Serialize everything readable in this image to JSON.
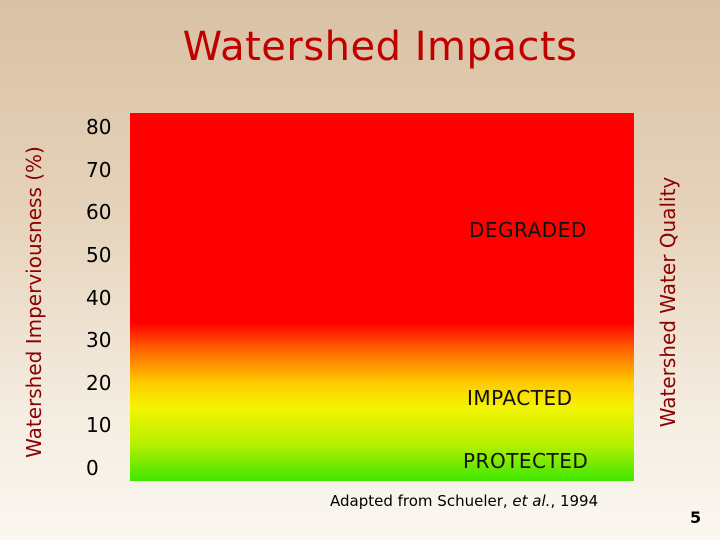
{
  "slide": {
    "title": "Watershed Impacts",
    "credit_prefix": "Adapted from Schueler, ",
    "credit_italic": "et al.",
    "credit_suffix": ", 1994",
    "page_number": "5"
  },
  "chart_data": {
    "type": "area",
    "title": "Watershed Impacts",
    "ylabel": "Watershed Imperviousness (%)",
    "ylabel_right": "Watershed Water Quality",
    "ylim": [
      0,
      80
    ],
    "yticks": [
      "80",
      "70",
      "60",
      "50",
      "40",
      "30",
      "20",
      "10",
      "0"
    ],
    "zones": [
      {
        "label": "DEGRADED",
        "color": "#ff0000"
      },
      {
        "label": "IMPACTED",
        "color": "#ffc800"
      },
      {
        "label": "PROTECTED",
        "color": "#3ee600"
      }
    ],
    "grid": false
  }
}
